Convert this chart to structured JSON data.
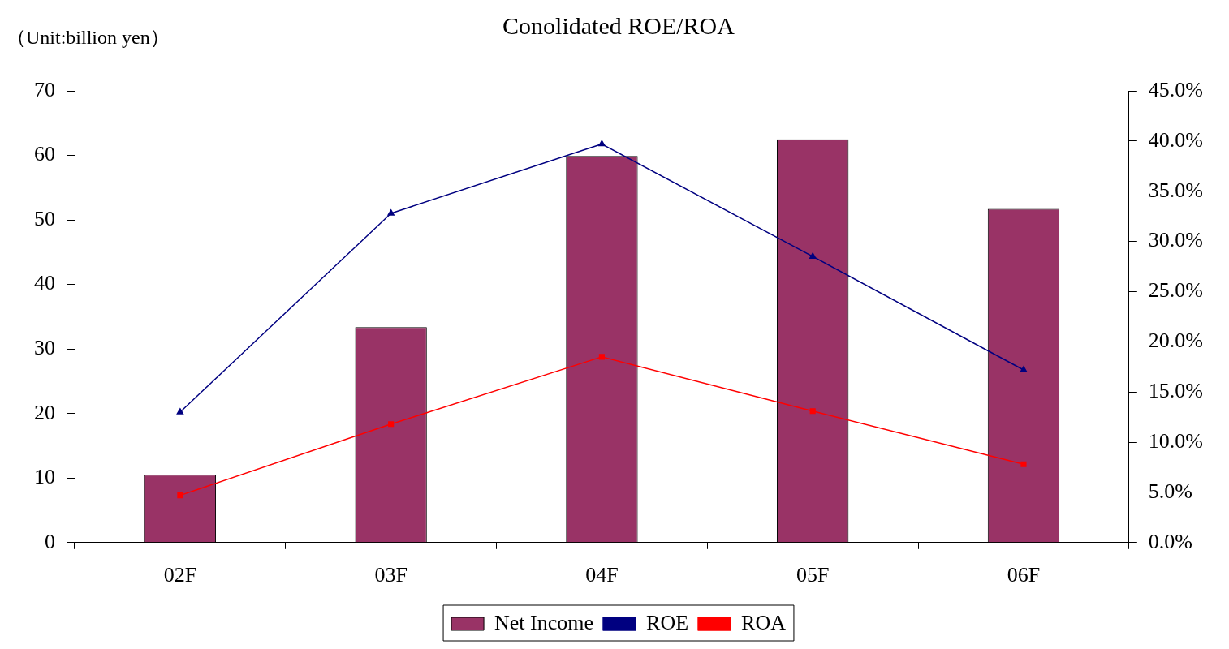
{
  "chart_data": {
    "type": "bar",
    "title": "Conolidated ROE/ROA",
    "annotations": [
      "（Unit:billion yen）"
    ],
    "categories": [
      "02F",
      "03F",
      "04F",
      "05F",
      "06F"
    ],
    "series": [
      {
        "name": "Net Income",
        "color": "#993366",
        "values": [
          10.5,
          33.4,
          59.9,
          62.5,
          51.7
        ]
      },
      {
        "name": "ROE",
        "type": "line",
        "axis": "y2",
        "marker": "triangle",
        "color": "#000080",
        "values": [
          13.0,
          32.8,
          39.7,
          28.5,
          17.2
        ]
      },
      {
        "name": "ROA",
        "type": "line",
        "axis": "y2",
        "marker": "square",
        "color": "#ff0000",
        "values": [
          4.7,
          11.8,
          18.5,
          13.1,
          7.8
        ]
      }
    ],
    "ylim": [
      0,
      70
    ],
    "yticks": [
      0,
      10,
      20,
      30,
      40,
      50,
      60,
      70
    ],
    "y2lim": [
      0,
      45
    ],
    "y2ticks": [
      {
        "value": 0,
        "label": "0.0%"
      },
      {
        "value": 5,
        "label": "5.0%"
      },
      {
        "value": 10,
        "label": "10.0%"
      },
      {
        "value": 15,
        "label": "15.0%"
      },
      {
        "value": 20,
        "label": "20.0%"
      },
      {
        "value": 25,
        "label": "25.0%"
      },
      {
        "value": 30,
        "label": "30.0%"
      },
      {
        "value": 35,
        "label": "35.0%"
      },
      {
        "value": 40,
        "label": "40.0%"
      },
      {
        "value": 45,
        "label": "45.0%"
      }
    ],
    "grid": false,
    "legend": "bottom"
  }
}
